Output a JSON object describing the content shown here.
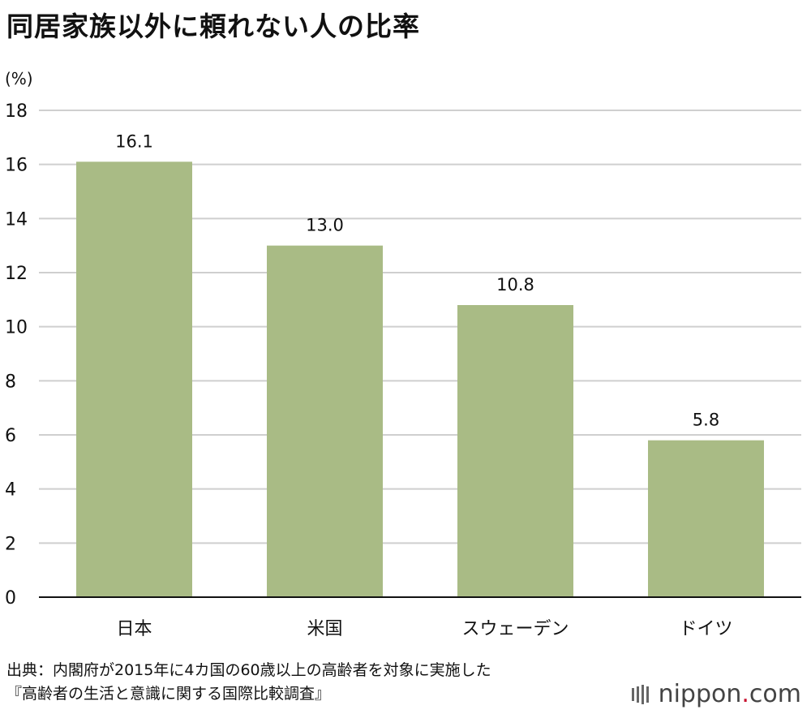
{
  "title": "同居家族以外に頼れない人の比率",
  "chart_data": {
    "type": "bar",
    "title": "同居家族以外に頼れない人の比率",
    "ylabel": "(%)",
    "xlabel": "",
    "categories": [
      "日本",
      "米国",
      "スウェーデン",
      "ドイツ"
    ],
    "values": [
      16.1,
      13.0,
      10.8,
      5.8
    ],
    "value_labels": [
      "16.1",
      "13.0",
      "10.8",
      "5.8"
    ],
    "ylim": [
      0,
      18
    ],
    "yticks": [
      0,
      2,
      4,
      6,
      8,
      10,
      12,
      14,
      16,
      18
    ],
    "grid": true,
    "legend": "none",
    "bar_color": "#a9bb85",
    "grid_color": "#cfcfcf"
  },
  "source": {
    "line1": "出典：内閣府が2015年に4カ国の60歳以上の高齢者を対象に実施した",
    "line2": "『高齢者の生活と意識に関する国際比較調査』"
  },
  "brand": {
    "name": "nippon",
    "dot": ".",
    "suffix": "com"
  }
}
